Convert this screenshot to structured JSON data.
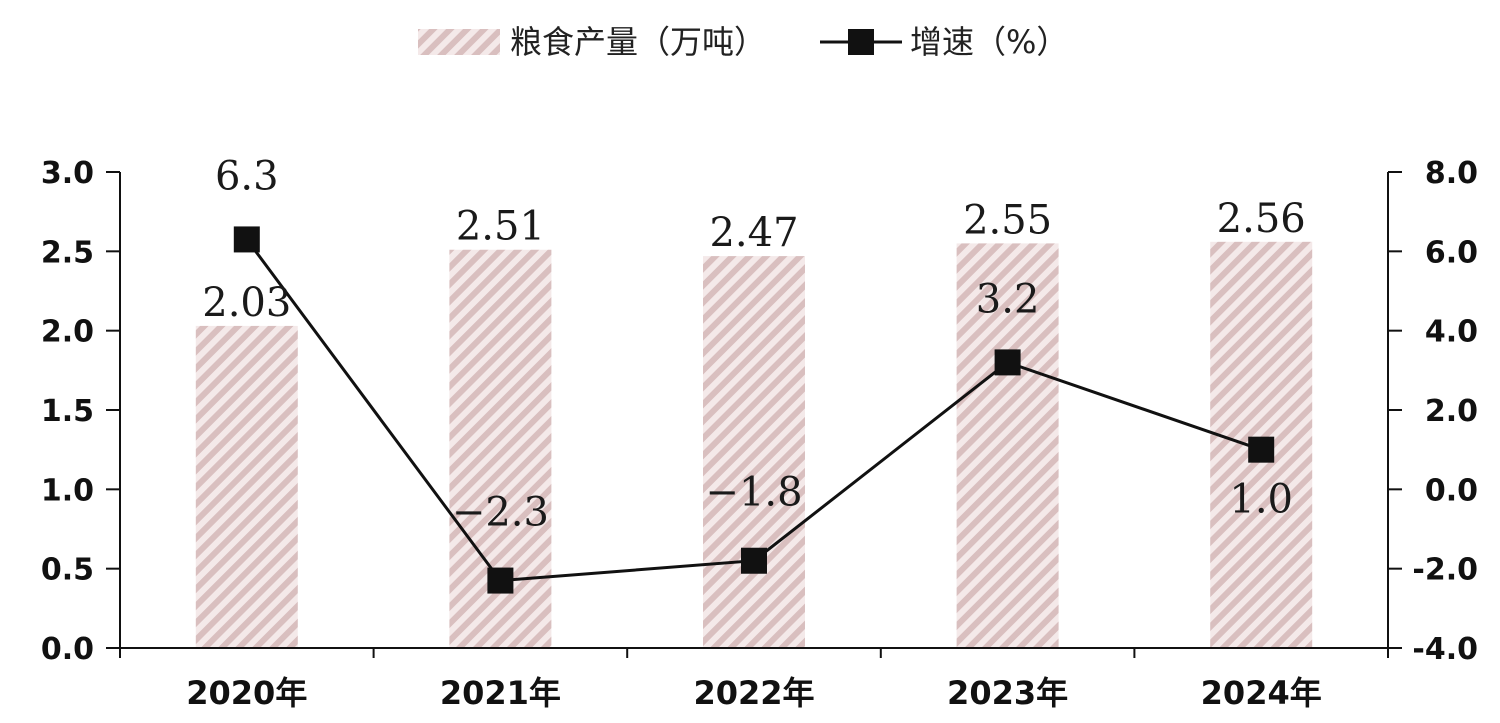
{
  "chart_data": {
    "type": "bar",
    "categories": [
      "2020年",
      "2021年",
      "2022年",
      "2023年",
      "2024年"
    ],
    "series": [
      {
        "name": "粮食产量（万吨）",
        "type": "bar",
        "axis": "left",
        "values": [
          2.03,
          2.51,
          2.47,
          2.55,
          2.56
        ]
      },
      {
        "name": "增速（%）",
        "type": "line",
        "axis": "right",
        "values": [
          6.3,
          -2.3,
          -1.8,
          3.2,
          1.0
        ]
      }
    ],
    "bar_labels": [
      "2.03",
      "2.51",
      "2.47",
      "2.55",
      "2.56"
    ],
    "line_labels": [
      "6.3",
      "−2.3",
      "−1.8",
      "3.2",
      "1.0"
    ],
    "ylim_left": [
      0.0,
      3.0
    ],
    "ylim_right": [
      -4.0,
      8.0
    ],
    "left_ticks": [
      "0.0",
      "0.5",
      "1.0",
      "1.5",
      "2.0",
      "2.5",
      "3.0"
    ],
    "right_ticks": [
      "-4.0",
      "-2.0",
      "0.0",
      "2.0",
      "4.0",
      "6.0",
      "8.0"
    ],
    "legend_position": "top-center",
    "grid": false,
    "colors": {
      "bar_stripe": "#d9bfbf",
      "bar_base": "#f3e7e7",
      "line": "#111111",
      "marker": "#111111",
      "axis": "#111111"
    }
  }
}
